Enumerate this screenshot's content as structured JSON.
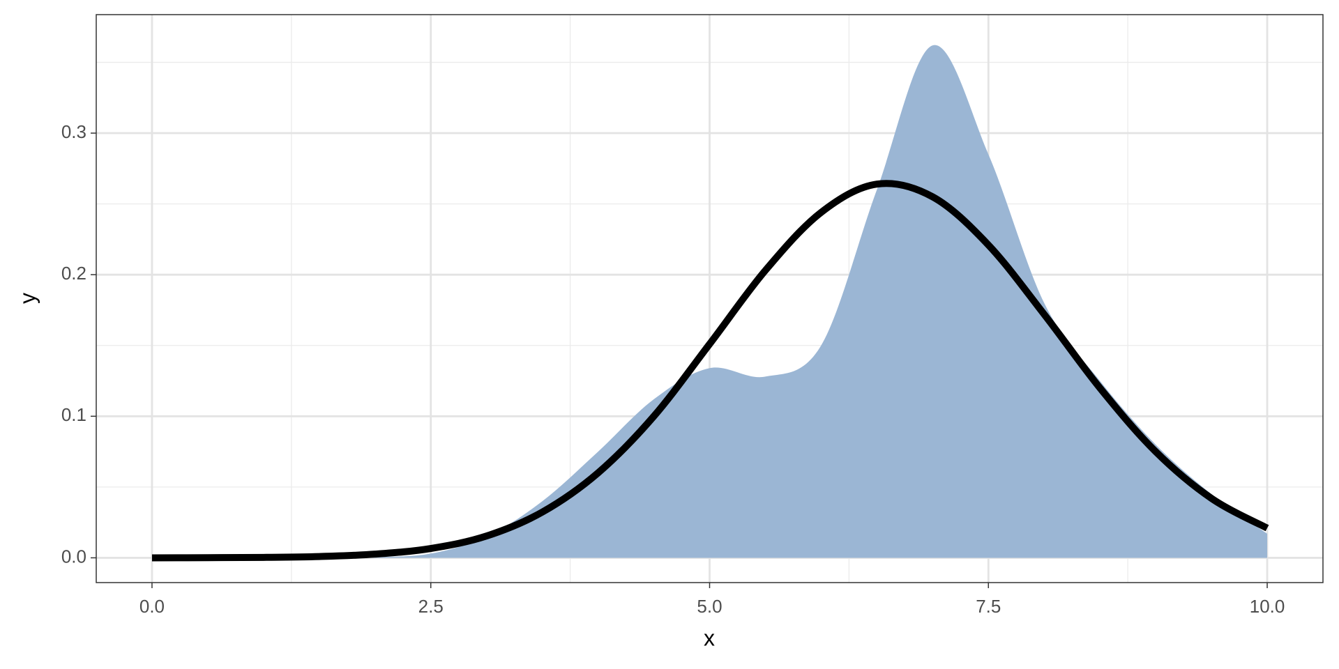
{
  "chart_data": {
    "type": "line",
    "x_label": "x",
    "y_label": "y",
    "x": [
      0,
      0.5,
      1,
      1.5,
      2,
      2.5,
      3,
      3.5,
      4,
      4.5,
      5,
      5.5,
      6,
      6.5,
      7,
      7.5,
      8,
      8.5,
      9,
      9.5,
      10
    ],
    "series": [
      {
        "color": "#9bb6d4",
        "area": true,
        "values": [
          0,
          0,
          0,
          0,
          0.0005,
          0.003,
          0.015,
          0.04,
          0.075,
          0.112,
          0.134,
          0.128,
          0.15,
          0.26,
          0.362,
          0.285,
          0.18,
          0.125,
          0.08,
          0.045,
          0.017
        ]
      },
      {
        "color": "#000000",
        "area": false,
        "values": [
          0,
          0.0001,
          0.0003,
          0.0009,
          0.0026,
          0.0066,
          0.0154,
          0.0323,
          0.06,
          0.1,
          0.151,
          0.203,
          0.244,
          0.264,
          0.255,
          0.221,
          0.172,
          0.12,
          0.075,
          0.042,
          0.021
        ]
      }
    ],
    "xlim": [
      -0.5,
      10.5
    ],
    "ylim": [
      -0.0175,
      0.3837
    ],
    "xticks": [
      {
        "value": 0,
        "label": "0.0"
      },
      2.5,
      {
        "value": 5,
        "label": "5.0"
      },
      7.5,
      {
        "value": 10,
        "label": "10.0"
      }
    ],
    "yticks": [
      {
        "value": 0,
        "label": "0.0"
      },
      0.1,
      0.2,
      0.3
    ],
    "xminor": [
      1.25,
      3.75,
      6.25,
      8.75
    ],
    "yminor": [
      0.05,
      0.15,
      0.25,
      0.35
    ],
    "grid": true
  }
}
